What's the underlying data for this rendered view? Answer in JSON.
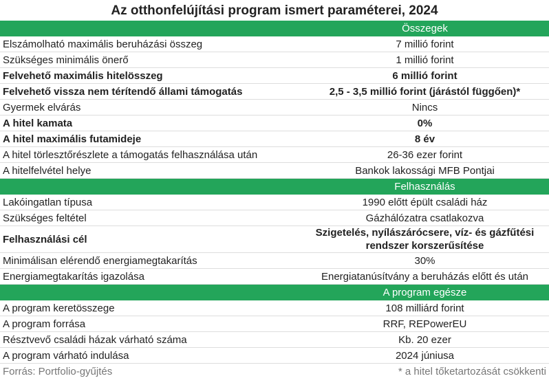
{
  "title": "Az otthonfelújítási program ismert paraméterei, 2024",
  "sections": [
    {
      "header": "Összegek",
      "rows": [
        [
          "Elszámolható maximális beruházási összeg",
          "7 millió forint"
        ],
        [
          "Szükséges minimális önerő",
          "1 millió forint"
        ],
        [
          "Felvehető maximális hitelösszeg",
          "6 millió forint"
        ],
        [
          "Felvehető vissza nem térítendő állami támogatás",
          "2,5 - 3,5 millió forint (járástól függően)*"
        ],
        [
          "Gyermek elvárás",
          "Nincs"
        ],
        [
          "A hitel kamata",
          "0%"
        ],
        [
          "A hitel maximális futamideje",
          "8 év"
        ],
        [
          "A hitel törlesztőrészlete a támogatás felhasználása után",
          "26-36 ezer forint"
        ],
        [
          "A hitelfelvétel helye",
          "Bankok lakossági MFB Pontjai"
        ]
      ]
    },
    {
      "header": "Felhasználás",
      "rows": [
        [
          "Lakóingatlan típusa",
          "1990 előtt épült családi ház"
        ],
        [
          "Szükséges feltétel",
          "Gázhálózatra csatlakozva"
        ],
        [
          "Felhasználási cél",
          "Szigetelés, nyílászárócsere, víz- és gázfűtési rendszer korszerűsítése"
        ],
        [
          "Minimálisan elérendő energiamegtakarítás",
          "30%"
        ],
        [
          "Energiamegtakarítás igazolása",
          "Energiatanúsítvány a beruházás előtt és után"
        ]
      ]
    },
    {
      "header": "A program egésze",
      "rows": [
        [
          "A program keretösszege",
          "108 milliárd forint"
        ],
        [
          "A program forrása",
          "RRF, REPowerEU"
        ],
        [
          "Résztvevő családi házak várható száma",
          "Kb. 20 ezer"
        ],
        [
          "A program várható indulása",
          "2024 júniusa"
        ]
      ]
    }
  ],
  "footer": {
    "source": "Forrás: Portfolio-gyűjtés",
    "note": "* a hitel tőketartozását csökkenti"
  }
}
